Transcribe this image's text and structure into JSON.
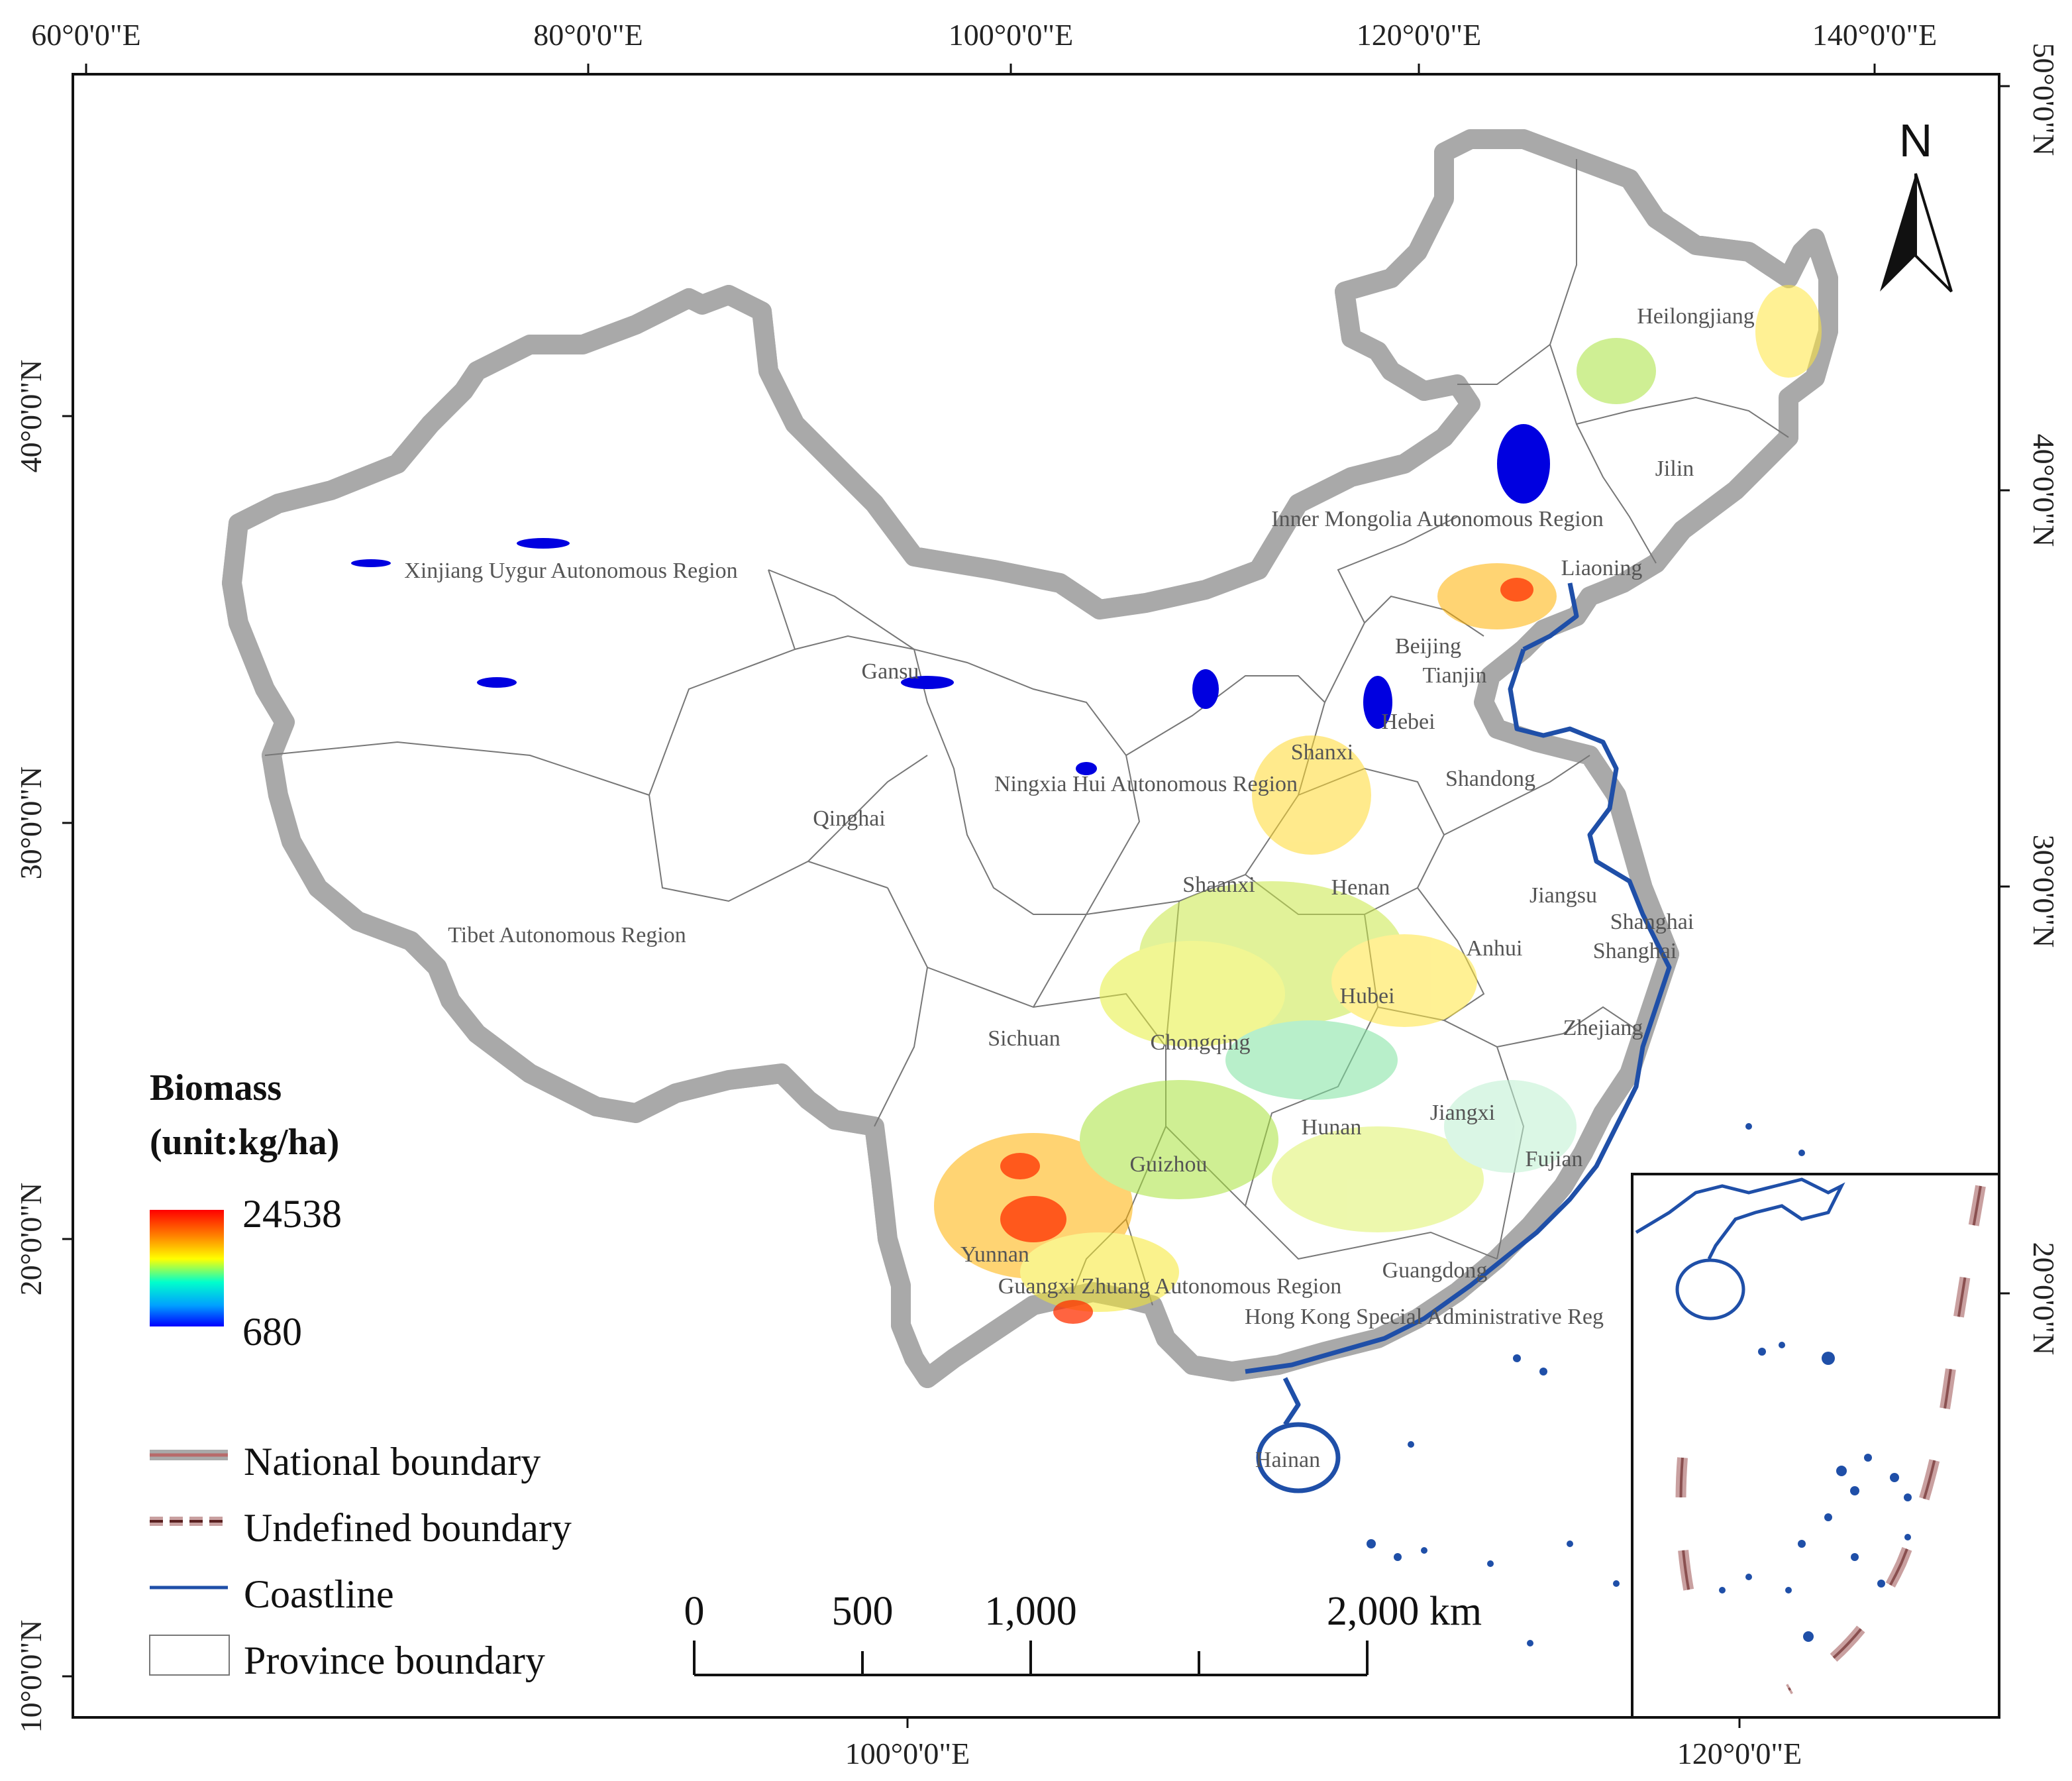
{
  "graticule": {
    "top_labels": [
      "60°0'0\"E",
      "80°0'0\"E",
      "100°0'0\"E",
      "120°0'0\"E",
      "140°0'0\"E"
    ],
    "left_labels": [
      "40°0'0\"N",
      "30°0'0\"N",
      "20°0'0\"N",
      "10°0'0\"N"
    ],
    "right_labels": [
      "50°0'0\"N",
      "40°0'0\"N",
      "30°0'0\"N",
      "20°0'0\"N"
    ],
    "bottom_labels": [
      "100°0'0\"E",
      "120°0'0\"E"
    ],
    "inset_right_label": "20°0'0\"N"
  },
  "north_arrow": {
    "label": "N"
  },
  "provinces": [
    "Heilongjiang",
    "Jilin",
    "Inner Mongolia Autonomous Region",
    "Liaoning",
    "Xinjiang Uygur Autonomous Region",
    "Beijing",
    "Tianjin",
    "Gansu",
    "Hebei",
    "Shanxi",
    "Ningxia Hui Autonomous Region",
    "Shandong",
    "Qinghai",
    "Shaanxi",
    "Henan",
    "Jiangsu",
    "Shanghai",
    "Shanghai",
    "Anhui",
    "Tibet Autonomous Region",
    "Hubei",
    "Zhejiang",
    "Sichuan",
    "Chongqing",
    "Jiangxi",
    "Hunan",
    "Fujian",
    "Guizhou",
    "Yunnan",
    "Guangdong",
    "Guangxi Zhuang Autonomous Region",
    "Hong Kong Special Administrative Reg",
    "Hainan"
  ],
  "legend": {
    "title_line1": "Biomass",
    "title_line2": "(unit:kg/ha)",
    "max_value": "24538",
    "min_value": "680",
    "ramp_colors": [
      "#ff0000",
      "#ff8000",
      "#ffff00",
      "#00ffcc",
      "#00a0ff",
      "#0000ff"
    ],
    "items": [
      "National boundary",
      "Undefined boundary",
      "Coastline",
      "Province boundary"
    ],
    "colors": {
      "national_boundary": "#a9a9a9",
      "national_boundary_core": "#b86a6a",
      "undefined_boundary_dash": "#5a2020",
      "coastline": "#1f4fa8",
      "province_boundary": "#777777"
    }
  },
  "scale_bar": {
    "labels": [
      "0",
      "500",
      "1,000",
      "2,000 km"
    ]
  }
}
